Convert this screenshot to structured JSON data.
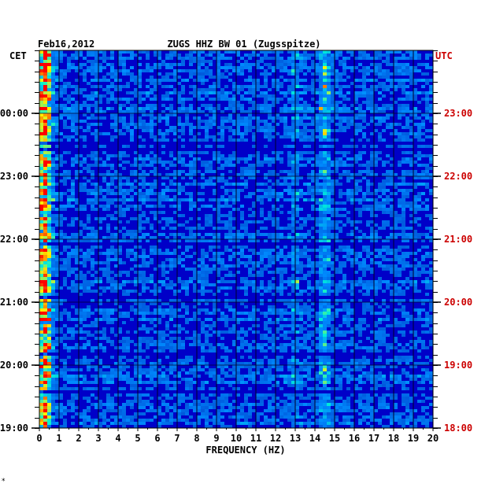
{
  "chart_data": {
    "type": "heatmap",
    "date": "Feb16,2012",
    "title": "ZUGS HHZ BW 01 (Zugsspitze)",
    "xlabel": "FREQUENCY (HZ)",
    "xlim": [
      0,
      20
    ],
    "x_ticks": [
      "0",
      "1",
      "2",
      "3",
      "4",
      "5",
      "6",
      "7",
      "8",
      "9",
      "10",
      "11",
      "12",
      "13",
      "14",
      "15",
      "16",
      "17",
      "18",
      "19",
      "20"
    ],
    "left_axis_label": "CET",
    "right_axis_label": "UTC",
    "left_ticks": [
      "00:00",
      "23:00",
      "22:00",
      "21:00",
      "20:00",
      "19:00"
    ],
    "right_ticks": [
      "23:00",
      "22:00",
      "21:00",
      "20:00",
      "19:00",
      "18:00"
    ],
    "time_span_hours": 6,
    "grid": true,
    "colors": {
      "background": "#0000c8",
      "frame": "#000000",
      "cet_text": "#000000",
      "utc_text": "#cc0000",
      "low": "#0000b4",
      "high": "#ff0000"
    },
    "spectral_features": [
      {
        "frequency_hz": 0.3,
        "relative_intensity": "high"
      },
      {
        "frequency_hz": 14.5,
        "relative_intensity": "medium"
      },
      {
        "frequency_hz": 13.0,
        "relative_intensity": "low"
      }
    ]
  },
  "footer_mark": "*"
}
